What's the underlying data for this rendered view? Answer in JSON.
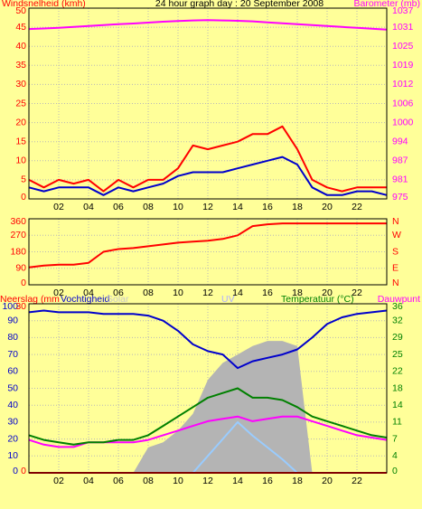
{
  "chart_data": [
    {
      "type": "line",
      "title": "24 hour graph day : 20 September 2008",
      "axis_labels": [
        {
          "text": "Windsnelheid (kmh)",
          "color": "#ff0000"
        },
        {
          "text": "Barometer (mb)",
          "color": "#ff00ff"
        }
      ],
      "x": [
        0,
        1,
        2,
        3,
        4,
        5,
        6,
        7,
        8,
        9,
        10,
        11,
        12,
        13,
        14,
        15,
        16,
        17,
        18,
        19,
        20,
        21,
        22,
        23,
        24
      ],
      "xlim": [
        0,
        24
      ],
      "xticks": [
        {
          "value": 2,
          "label": "02"
        },
        {
          "value": 4,
          "label": "04"
        },
        {
          "value": 6,
          "label": "06"
        },
        {
          "value": 8,
          "label": "08"
        },
        10,
        12,
        14,
        16,
        18,
        20,
        22
      ],
      "ylim": [
        0,
        50
      ],
      "yticks": [
        0,
        5,
        10,
        15,
        20,
        25,
        30,
        35,
        40,
        45,
        50
      ],
      "ytick_color": "#ff0000",
      "y2lim": [
        975,
        1037
      ],
      "y2ticks": [
        {
          "value": 975,
          "label": "975"
        },
        {
          "value": 981.2,
          "label": "981"
        },
        {
          "value": 987.4,
          "label": "987"
        },
        {
          "value": 993.6,
          "label": "994"
        },
        {
          "value": 999.8,
          "label": "1000"
        },
        {
          "value": 1006,
          "label": "1006"
        },
        {
          "value": 1012.2,
          "label": "1012"
        },
        {
          "value": 1018.4,
          "label": "1019"
        },
        {
          "value": 1024.6,
          "label": "1025"
        },
        {
          "value": 1030.8,
          "label": "1031"
        },
        {
          "value": 1037,
          "label": "1037"
        }
      ],
      "y2tick_color": "#ff00ff",
      "grid": true,
      "series": [
        {
          "color": "#ff0000",
          "axis": "y",
          "values": [
            5,
            3,
            5,
            4,
            5,
            2,
            5,
            3,
            5,
            5,
            8,
            14,
            13,
            14,
            15,
            17,
            17,
            19,
            13,
            5,
            3,
            2,
            3,
            3,
            3
          ]
        },
        {
          "color": "#0000cc",
          "axis": "y",
          "values": [
            3,
            2,
            3,
            3,
            3,
            1,
            3,
            2,
            3,
            4,
            6,
            7,
            7,
            7,
            8,
            9,
            10,
            11,
            9,
            3,
            1,
            1,
            2,
            2,
            1
          ]
        },
        {
          "color": "#ff00ff",
          "axis": "y2",
          "values": [
            1030.2,
            1030.4,
            1030.6,
            1030.9,
            1031.2,
            1031.5,
            1031.8,
            1032,
            1032.3,
            1032.6,
            1032.8,
            1033,
            1033.1,
            1033,
            1032.9,
            1032.7,
            1032.4,
            1032.1,
            1031.8,
            1031.5,
            1031.2,
            1030.9,
            1030.6,
            1030.3,
            1030
          ]
        }
      ]
    },
    {
      "type": "line",
      "x": [
        0,
        1,
        2,
        3,
        4,
        5,
        6,
        7,
        8,
        9,
        10,
        11,
        12,
        13,
        14,
        15,
        16,
        17,
        18,
        19,
        20,
        21,
        22,
        23,
        24
      ],
      "xlim": [
        0,
        24
      ],
      "xticks": [
        {
          "value": 2,
          "label": "02"
        },
        {
          "value": 4,
          "label": "04"
        },
        {
          "value": 6,
          "label": "06"
        },
        {
          "value": 8,
          "label": "08"
        },
        10,
        12,
        14,
        16,
        18,
        20,
        22
      ],
      "ylim": [
        0,
        360
      ],
      "yticks": [
        0,
        90,
        180,
        270,
        360
      ],
      "ytick_color": "#ff0000",
      "y2lim": [
        0,
        360
      ],
      "y2ticks": [
        {
          "value": 0,
          "label": "N"
        },
        {
          "value": 90,
          "label": "E"
        },
        {
          "value": 180,
          "label": "S"
        },
        {
          "value": 270,
          "label": "W"
        },
        {
          "value": 360,
          "label": "N"
        }
      ],
      "y2tick_color": "#ff0000",
      "grid": true,
      "series": [
        {
          "color": "#ff0000",
          "axis": "y",
          "values": [
            95,
            105,
            110,
            110,
            120,
            180,
            195,
            200,
            210,
            220,
            230,
            235,
            240,
            250,
            270,
            320,
            330,
            335,
            335,
            335,
            335,
            335,
            335,
            335,
            335
          ]
        }
      ]
    },
    {
      "type": "line",
      "axis_labels": [
        {
          "text": "Neerslag (mm",
          "color": "#ff0000"
        },
        {
          "text": "Vochtigheid",
          "color": "#0000cc"
        },
        {
          "text": "Solar",
          "color": "#c8c8c8"
        },
        {
          "text": "UV",
          "color": "#b0b0ff"
        },
        {
          "text": "Temperatuur (°C)",
          "color": "#008000"
        },
        {
          "text": "Dauwpunt",
          "color": "#ff00ff"
        }
      ],
      "x": [
        0,
        1,
        2,
        3,
        4,
        5,
        6,
        7,
        8,
        9,
        10,
        11,
        12,
        13,
        14,
        15,
        16,
        17,
        18,
        19,
        20,
        21,
        22,
        23,
        24
      ],
      "xlim": [
        0,
        24
      ],
      "xticks": [
        {
          "value": 2,
          "label": "02"
        },
        {
          "value": 4,
          "label": "04"
        },
        {
          "value": 6,
          "label": "06"
        },
        {
          "value": 8,
          "label": "08"
        },
        10,
        12,
        14,
        16,
        18,
        20,
        22
      ],
      "ylim": [
        0,
        100
      ],
      "yticks": [
        0,
        10,
        20,
        30,
        40,
        50,
        60,
        70,
        80,
        90,
        100
      ],
      "ytick_color": "#0000cc",
      "y2lim": [
        0,
        36
      ],
      "y2ticks": [
        0,
        {
          "value": 3.6,
          "label": "4"
        },
        {
          "value": 7.2,
          "label": "7"
        },
        {
          "value": 10.8,
          "label": "11"
        },
        {
          "value": 14.4,
          "label": "14"
        },
        18,
        {
          "value": 21.6,
          "label": "22"
        },
        {
          "value": 25.2,
          "label": "25"
        },
        {
          "value": 28.8,
          "label": "29"
        },
        {
          "value": 32.4,
          "label": "32"
        },
        36
      ],
      "y2tick_color": "#008000",
      "y3lim": [
        0,
        30
      ],
      "y3ticks": [
        0,
        30
      ],
      "y3tick_color": "#ff0000",
      "grid": true,
      "series": [
        {
          "color": "#b4b4b4",
          "axis": "y",
          "kind": "area",
          "values": [
            0,
            0,
            0,
            0,
            0,
            0,
            0,
            0,
            15,
            18,
            25,
            35,
            55,
            65,
            70,
            75,
            78,
            78,
            75,
            0,
            0,
            0,
            0,
            0,
            0
          ]
        },
        {
          "color": "#99ccff",
          "axis": "y",
          "values": [
            0,
            0,
            0,
            0,
            0,
            0,
            0,
            0,
            0,
            0,
            0,
            0,
            10,
            20,
            30,
            22,
            15,
            8,
            0,
            0,
            0,
            0,
            0,
            0,
            0
          ]
        },
        {
          "color": "#ff0000",
          "axis": "y3",
          "values": [
            0,
            0,
            0,
            0,
            0,
            0,
            0,
            0,
            0,
            0,
            0,
            0,
            0,
            0,
            0,
            0,
            0,
            0,
            0,
            0,
            0,
            0,
            0,
            0,
            0
          ]
        },
        {
          "color": "#0000cc",
          "axis": "y",
          "values": [
            95,
            96,
            95,
            95,
            95,
            94,
            94,
            94,
            93,
            90,
            84,
            76,
            72,
            70,
            62,
            66,
            68,
            70,
            73,
            80,
            88,
            92,
            94,
            95,
            96
          ]
        },
        {
          "color": "#ff00ff",
          "axis": "y2",
          "values": [
            7,
            6,
            5.5,
            5.5,
            6.5,
            6.5,
            6.5,
            6.5,
            7,
            8,
            9,
            10,
            11,
            11.5,
            12,
            11,
            11.5,
            12,
            12,
            11,
            10,
            9,
            8,
            7.5,
            7
          ]
        },
        {
          "color": "#008000",
          "axis": "y2",
          "values": [
            8,
            7,
            6.5,
            6,
            6.5,
            6.5,
            7,
            7,
            8,
            10,
            12,
            14,
            16,
            17,
            18,
            16,
            16,
            15.5,
            14,
            12,
            11,
            10,
            9,
            8,
            7.5
          ]
        }
      ]
    }
  ]
}
